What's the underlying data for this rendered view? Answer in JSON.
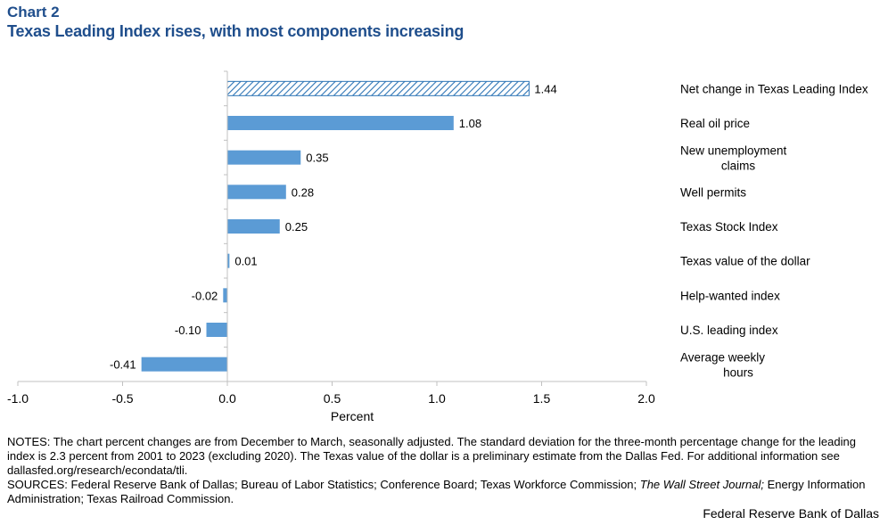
{
  "header": {
    "chart_number": "Chart 2",
    "title": "Texas Leading Index rises, with most components increasing"
  },
  "chart_data": {
    "type": "bar",
    "orientation": "horizontal",
    "categories": [
      [
        "Net change in Texas Leading Index"
      ],
      [
        "Real oil price"
      ],
      [
        "New unemployment",
        "claims"
      ],
      [
        "Well permits"
      ],
      [
        "Texas Stock Index"
      ],
      [
        "Texas value of the dollar"
      ],
      [
        "Help-wanted index"
      ],
      [
        "U.S. leading index"
      ],
      [
        "Average weekly",
        "hours"
      ]
    ],
    "values": [
      1.44,
      1.08,
      0.35,
      0.28,
      0.25,
      0.01,
      -0.02,
      -0.1,
      -0.41
    ],
    "value_labels": [
      "1.44",
      "1.08",
      "0.35",
      "0.28",
      "0.25",
      "0.01",
      "-0.02",
      "-0.10",
      "-0.41"
    ],
    "hatched": [
      true,
      false,
      false,
      false,
      false,
      false,
      false,
      false,
      false
    ],
    "xlabel": "Percent",
    "xlim": [
      -1.0,
      2.0
    ],
    "xticks": [
      -1.0,
      -0.5,
      0.0,
      0.5,
      1.0,
      1.5,
      2.0
    ],
    "xtick_labels": [
      "-1.0",
      "-0.5",
      "0.0",
      "0.5",
      "1.0",
      "1.5",
      "2.0"
    ],
    "bar_color": "#5b9bd5",
    "hatch_color": "#2e75b6",
    "grid": false,
    "legend": "none"
  },
  "notes": {
    "line1": "NOTES: The chart percent changes are from December to March, seasonally adjusted. The standard deviation for the three-month percentage change for the leading index is 2.3 percent from 2001 to 2023 (excluding 2020). The Texas value of the dollar is a preliminary estimate from the Dallas Fed. For additional information see dallasfed.org/research/econdata/tli.",
    "sources_prefix": "SOURCES: Federal Reserve Bank of Dallas; Bureau of Labor Statistics; Conference Board; Texas Workforce Commission; ",
    "sources_italic": "The Wall Street Journal;",
    "sources_suffix": " Energy Information Administration; Texas Railroad Commission."
  },
  "footer": {
    "credit": "Federal Reserve Bank of Dallas"
  }
}
